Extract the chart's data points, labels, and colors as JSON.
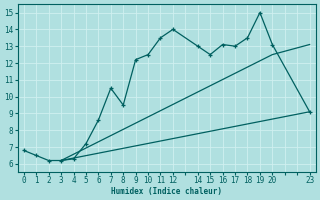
{
  "xlabel": "Humidex (Indice chaleur)",
  "bg_color": "#b0e0e0",
  "grid_color": "#d0f0f0",
  "line_color": "#006060",
  "xlim": [
    -0.5,
    23.5
  ],
  "ylim": [
    5.5,
    15.5
  ],
  "x_tick_positions": [
    0,
    1,
    2,
    3,
    4,
    5,
    6,
    7,
    8,
    9,
    10,
    11,
    12,
    13,
    14,
    15,
    16,
    17,
    18,
    19,
    20,
    21,
    22,
    23
  ],
  "x_tick_labels": [
    "0",
    "1",
    "2",
    "3",
    "4",
    "5",
    "6",
    "7",
    "8",
    "9",
    "10",
    "11",
    "12",
    "",
    "14",
    "15",
    "16",
    "17",
    "18",
    "19",
    "20",
    "",
    "",
    "23"
  ],
  "y_ticks": [
    6,
    7,
    8,
    9,
    10,
    11,
    12,
    13,
    14,
    15
  ],
  "main_x": [
    0,
    1,
    2,
    3,
    4,
    5,
    6,
    7,
    8,
    9,
    10,
    11,
    12,
    14,
    15,
    16,
    17,
    18,
    19,
    20,
    23
  ],
  "main_y": [
    6.8,
    6.5,
    6.2,
    6.2,
    6.3,
    7.2,
    8.6,
    10.5,
    9.5,
    12.2,
    12.5,
    13.5,
    14.0,
    13.0,
    12.5,
    13.1,
    13.0,
    13.5,
    15.0,
    13.1,
    9.1
  ],
  "line2_x": [
    3,
    20,
    23
  ],
  "line2_y": [
    6.2,
    12.5,
    13.1
  ],
  "line3_x": [
    3,
    23
  ],
  "line3_y": [
    6.2,
    9.1
  ],
  "label_fontsize": 5.5,
  "tick_fontsize": 5.5
}
